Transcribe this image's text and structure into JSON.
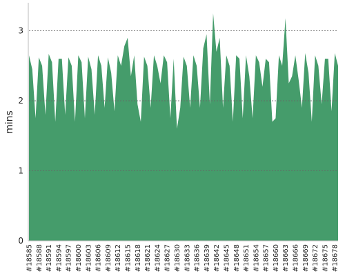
{
  "chart_data": {
    "type": "area",
    "ylabel": "mins",
    "color": "#459c6b",
    "grid": true,
    "ylim": [
      0,
      3.4
    ],
    "yticks": [
      0,
      1,
      2,
      3
    ],
    "categories": [
      "#18585",
      null,
      null,
      "#18588",
      null,
      null,
      "#18591",
      null,
      null,
      "#18594",
      null,
      null,
      "#18597",
      null,
      null,
      "#18600",
      null,
      null,
      "#18603",
      null,
      null,
      "#18606",
      null,
      null,
      "#18609",
      null,
      null,
      "#18612",
      null,
      null,
      "#18615",
      null,
      null,
      "#18618",
      null,
      null,
      "#18621",
      null,
      null,
      "#18624",
      null,
      null,
      "#18627",
      null,
      null,
      "#18630",
      null,
      null,
      "#18633",
      null,
      null,
      "#18636",
      null,
      null,
      "#18639",
      null,
      null,
      "#18642",
      null,
      null,
      "#18645",
      null,
      null,
      "#18648",
      null,
      null,
      "#18651",
      null,
      null,
      "#18654",
      null,
      null,
      "#18657",
      null,
      null,
      "#18660",
      null,
      null,
      "#18663",
      null,
      null,
      "#18666",
      null,
      null,
      "#18669",
      null,
      null,
      "#18672",
      null,
      null,
      "#18675",
      null,
      null,
      "#18678",
      null
    ],
    "values": [
      2.65,
      2.45,
      1.75,
      2.62,
      2.5,
      1.8,
      2.67,
      2.55,
      1.7,
      2.6,
      2.6,
      1.8,
      2.62,
      2.5,
      1.7,
      2.65,
      2.55,
      1.75,
      2.63,
      2.45,
      1.8,
      2.65,
      2.5,
      1.9,
      2.62,
      2.4,
      1.85,
      2.65,
      2.5,
      2.78,
      2.9,
      2.35,
      2.65,
      1.95,
      1.7,
      2.63,
      2.5,
      1.9,
      2.65,
      2.5,
      2.25,
      2.65,
      2.55,
      1.75,
      2.6,
      1.6,
      1.9,
      2.63,
      2.5,
      1.9,
      2.65,
      2.5,
      1.9,
      2.75,
      2.95,
      1.95,
      3.25,
      2.7,
      2.9,
      1.9,
      2.65,
      2.5,
      1.7,
      2.65,
      2.6,
      1.75,
      2.65,
      2.35,
      1.75,
      2.65,
      2.55,
      2.2,
      2.6,
      2.55,
      1.7,
      1.75,
      2.65,
      2.5,
      3.18,
      2.25,
      2.35,
      2.65,
      2.3,
      1.9,
      2.68,
      2.4,
      1.7,
      2.65,
      2.5,
      1.95,
      2.6,
      2.6,
      1.85,
      2.68,
      2.5
    ]
  }
}
